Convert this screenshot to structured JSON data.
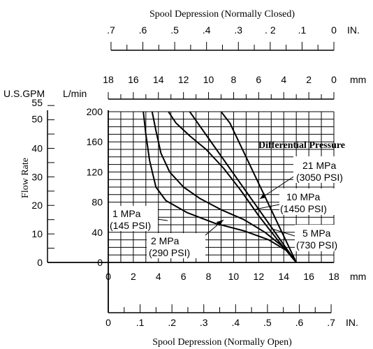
{
  "chart_data": {
    "type": "line",
    "title_top": "Spool Depression (Normally Closed)",
    "title_bottom": "Spool Depression (Normally Open)",
    "ylabel": "Flow Rate",
    "unit_gpm": "U.S.GPM",
    "unit_lmin": "L/min",
    "unit_mm": "mm",
    "unit_in": "IN.",
    "legend_title": "Differential Pressure",
    "top_in_ticks": [
      ".7",
      ".6",
      ".5",
      ".4",
      ".3",
      ". 2",
      ".1",
      "0"
    ],
    "top_mm_ticks": [
      "18",
      "16",
      "14",
      "12",
      "10",
      "8",
      "6",
      "4",
      "2",
      "0"
    ],
    "bottom_mm_ticks": [
      "0",
      "2",
      "4",
      "6",
      "8",
      "10",
      "12",
      "14",
      "16",
      "18"
    ],
    "bottom_in_ticks": [
      "0",
      ".1",
      ".2",
      ".3",
      ".4",
      ".5",
      ".6",
      ".7"
    ],
    "lmin_ticks": [
      "200",
      "160",
      "120",
      "80",
      "40",
      "0"
    ],
    "gpm_ticks": [
      "55",
      "50",
      "40",
      "30",
      "20",
      "10",
      "0"
    ],
    "xlim_mm": [
      0,
      18
    ],
    "ylim_lmin": [
      0,
      200
    ],
    "series": [
      {
        "label": "1 MPa",
        "label2": "(145 PSI)",
        "points": [
          [
            2.8,
            200
          ],
          [
            3.0,
            170
          ],
          [
            3.3,
            135
          ],
          [
            3.8,
            100
          ],
          [
            4.6,
            82
          ],
          [
            6.3,
            66
          ],
          [
            8.5,
            52
          ],
          [
            10.8,
            42
          ],
          [
            12.8,
            30
          ],
          [
            14.2,
            16
          ],
          [
            15.0,
            0
          ]
        ]
      },
      {
        "label": "2 MPa",
        "label2": "(290 PSI)",
        "points": [
          [
            3.5,
            200
          ],
          [
            3.8,
            175
          ],
          [
            4.2,
            145
          ],
          [
            4.9,
            120
          ],
          [
            6.0,
            100
          ],
          [
            7.3,
            85
          ],
          [
            9.0,
            70
          ],
          [
            10.8,
            57
          ],
          [
            12.5,
            40
          ],
          [
            14.0,
            20
          ],
          [
            15.0,
            0
          ]
        ]
      },
      {
        "label": "5 MPa",
        "label2": "(730 PSI)",
        "points": [
          [
            4.8,
            200
          ],
          [
            5.4,
            185
          ],
          [
            6.5,
            168
          ],
          [
            7.8,
            150
          ],
          [
            9.2,
            125
          ],
          [
            10.6,
            95
          ],
          [
            12.0,
            62
          ],
          [
            13.6,
            28
          ],
          [
            15.0,
            0
          ]
        ]
      },
      {
        "label": "10 MPa",
        "label2": "(1450 PSI)",
        "points": [
          [
            6.5,
            200
          ],
          [
            15.0,
            0
          ]
        ]
      },
      {
        "label": "21 MPa",
        "label2": "(3050 PSI)",
        "points": [
          [
            9.0,
            200
          ],
          [
            9.7,
            185
          ],
          [
            15.0,
            0
          ]
        ]
      }
    ]
  }
}
